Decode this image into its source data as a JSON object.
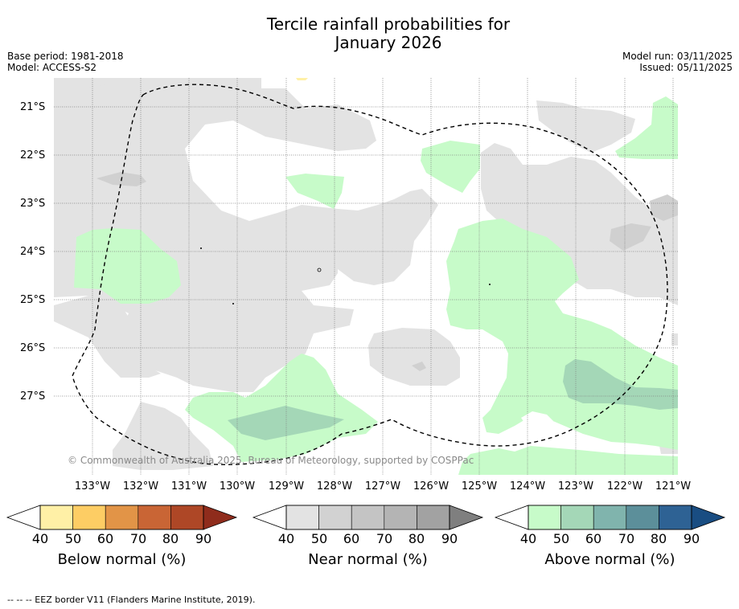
{
  "title_line1": "Tercile rainfall probabilities for",
  "title_line2": "January 2026",
  "base_period": "Base period: 1981-2018",
  "model": "Model: ACCESS-S2",
  "model_run": "Model run: 03/11/2025",
  "issued": "Issued: 05/11/2025",
  "lat_labels": [
    "21°S",
    "22°S",
    "23°S",
    "24°S",
    "25°S",
    "26°S",
    "27°S"
  ],
  "lon_labels": [
    "133°W",
    "132°W",
    "131°W",
    "130°W",
    "129°W",
    "128°W",
    "127°W",
    "126°W",
    "125°W",
    "124°W",
    "123°W",
    "122°W",
    "121°W"
  ],
  "copyright": "© Commonwealth of Australia 2025, Bureau of Meteorology, supported by COSPPac",
  "colorbars": [
    {
      "title": "Below normal (%)",
      "ticks": [
        "40",
        "50",
        "60",
        "70",
        "80",
        "90"
      ],
      "colors": [
        "#fff0a6",
        "#fdcd64",
        "#e29447",
        "#c96535",
        "#ae4726",
        "#8f2c1c"
      ]
    },
    {
      "title": "Near normal (%)",
      "ticks": [
        "40",
        "50",
        "60",
        "70",
        "80",
        "90"
      ],
      "colors": [
        "#e3e3e3",
        "#d2d2d2",
        "#c4c4c4",
        "#b4b4b4",
        "#a2a2a2",
        "#7f7f7f"
      ]
    },
    {
      "title": "Above normal (%)",
      "ticks": [
        "40",
        "50",
        "60",
        "70",
        "80",
        "90"
      ],
      "colors": [
        "#c7fbc9",
        "#a4d7b7",
        "#80b4ad",
        "#5c8f9a",
        "#2e6294",
        "#194d82"
      ]
    }
  ],
  "footnote": "--  --  -- EEZ border V11 (Flanders Marine Institute, 2019).",
  "colors": {
    "near_normal_40": "#e3e3e3",
    "near_normal_50": "#d0d0d0",
    "above_normal_40": "#c7fbc9",
    "above_normal_50": "#a4d7b7",
    "below_normal_40": "#fff0a6",
    "grid": "#7f7f7f"
  }
}
